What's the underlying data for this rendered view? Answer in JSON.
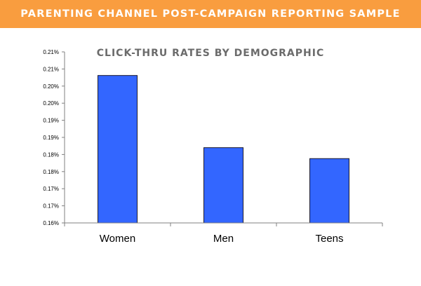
{
  "banner": {
    "title": "PARENTING CHANNEL POST-CAMPAIGN REPORTING SAMPLE",
    "color": "#F99D3F"
  },
  "colors": {
    "bar": "#3366FF",
    "title": "#6B6B6B",
    "axis": "#808080"
  },
  "chart_data": {
    "type": "bar",
    "title": "CLICK-THRU RATES BY DEMOGRAPHIC",
    "xlabel": "",
    "ylabel": "",
    "categories": [
      "Women",
      "Men",
      "Teens"
    ],
    "values": [
      0.2031,
      0.182,
      0.1788
    ],
    "ylim": [
      0.16,
      0.21
    ],
    "y_ticks": [
      0.16,
      0.165,
      0.17,
      0.175,
      0.18,
      0.185,
      0.19,
      0.195,
      0.2,
      0.205,
      0.21
    ],
    "y_tick_labels": [
      "0.16%",
      "0.17%",
      "0.17%",
      "0.18%",
      "0.18%",
      "0.19%",
      "0.19%",
      "0.20%",
      "0.20%",
      "0.21%",
      "0.21%"
    ],
    "grid": false,
    "legend": "none"
  }
}
